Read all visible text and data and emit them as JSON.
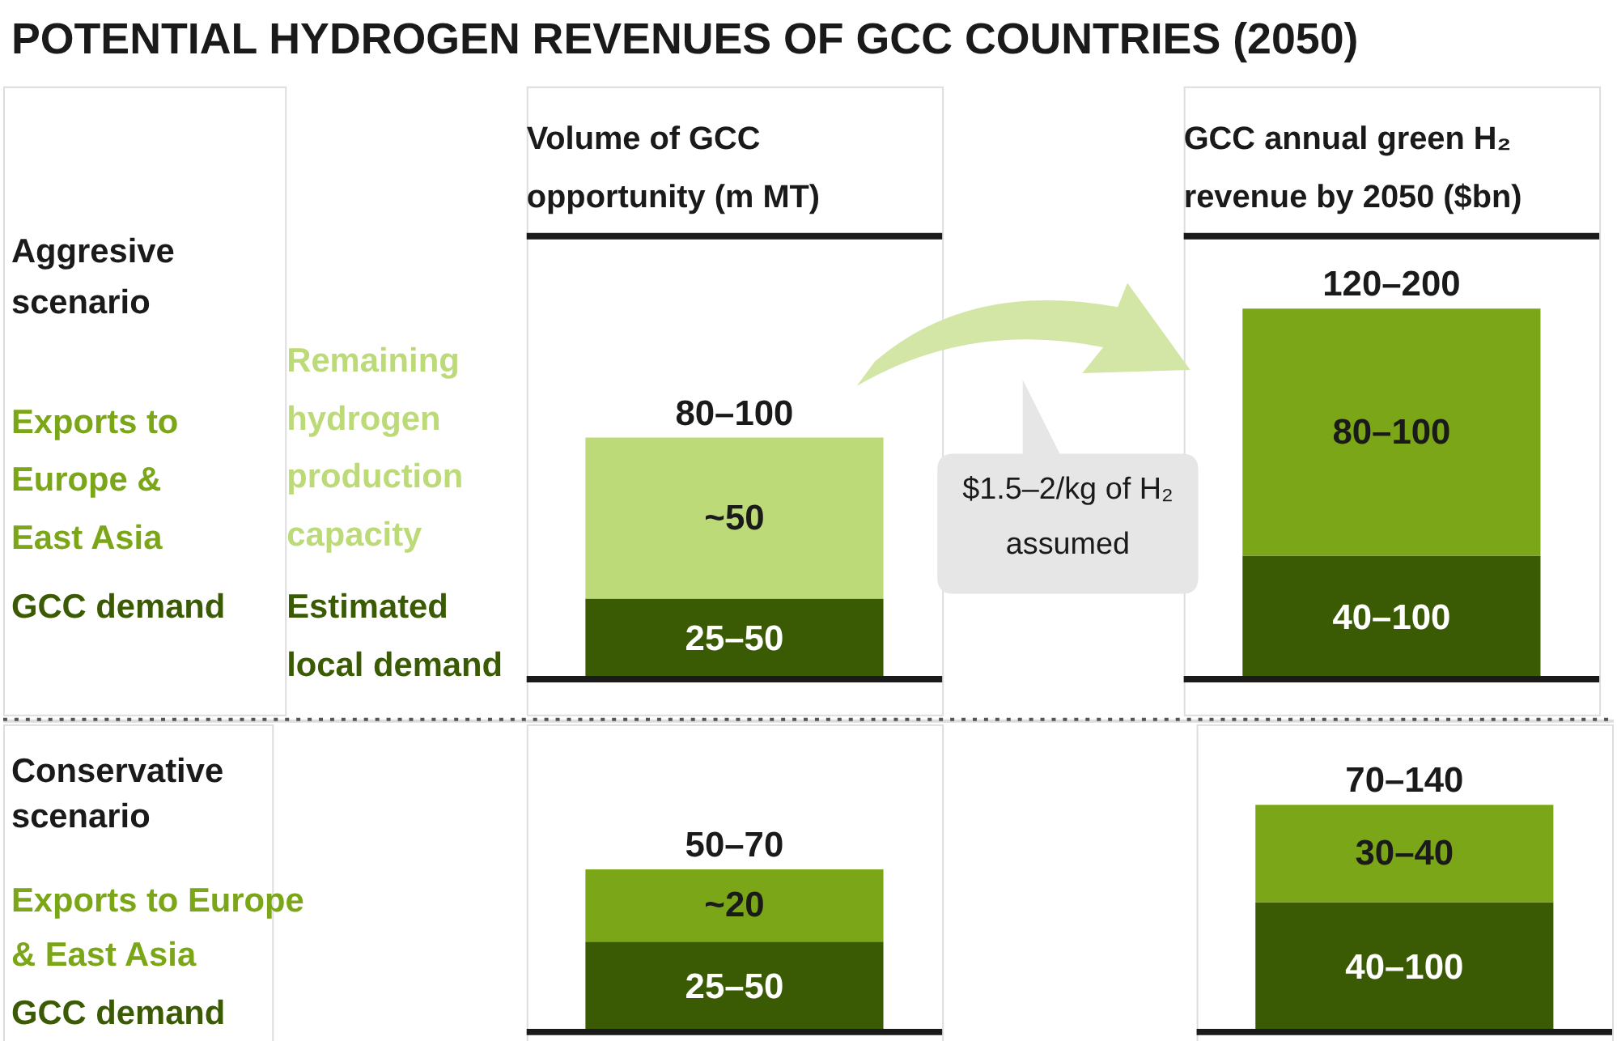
{
  "chart_data": [
    {
      "type": "other",
      "title": "POTENTIAL HYDROGEN REVENUES OF GCC COUNTRIES (2050)"
    },
    {
      "type": "bar",
      "title": "Volume of GCC opportunity (m MT)",
      "categories": [
        null
      ],
      "stacked": true,
      "legend": "left",
      "series": [
        {
          "name": "Estimated local demand",
          "color": "#3a5a04",
          "values": [
            25
          ],
          "value_labels": [
            "25–50"
          ]
        },
        {
          "name": "Remaining hydrogen production capacity",
          "color": "#bcda78",
          "values": [
            50
          ],
          "value_labels": [
            "~50"
          ]
        }
      ],
      "totals": [
        "80–100"
      ]
    },
    {
      "type": "bar",
      "title": "GCC annual green H₂ revenue by 2050 ($bn)",
      "legend_title": "Aggresive scenario",
      "categories": [
        null
      ],
      "stacked": true,
      "legend": "left",
      "series": [
        {
          "name": "GCC demand",
          "color": "#3a5a04",
          "values": [
            40
          ],
          "value_labels": [
            "40–100"
          ]
        },
        {
          "name": "Exports to Europe & East Asia",
          "color": "#7aa617",
          "values": [
            80
          ],
          "value_labels": [
            "80–100"
          ]
        }
      ],
      "totals": [
        "120–200"
      ],
      "annotations": [
        "$1.5–2/kg of H₂ assumed"
      ]
    },
    {
      "type": "bar",
      "legend_title": "Conservative scenario",
      "categories": [
        null
      ],
      "stacked": true,
      "legend": "left",
      "series": [
        {
          "name": "GCC demand",
          "color": "#3a5a04",
          "values": [
            25
          ],
          "value_labels": [
            "25–50"
          ]
        },
        {
          "name": "Exports to Europe & East Asia",
          "color": "#7aa617",
          "values": [
            20
          ],
          "value_labels": [
            "~20"
          ]
        }
      ],
      "totals": [
        "50–70"
      ]
    },
    {
      "type": "bar",
      "categories": [
        null
      ],
      "stacked": true,
      "series": [
        {
          "color": "#3a5a04",
          "values": [
            40
          ],
          "value_labels": [
            "40–100"
          ]
        },
        {
          "color": "#7aa617",
          "values": [
            30
          ],
          "value_labels": [
            "30–40"
          ]
        }
      ],
      "totals": [
        "70–140"
      ]
    }
  ]
}
